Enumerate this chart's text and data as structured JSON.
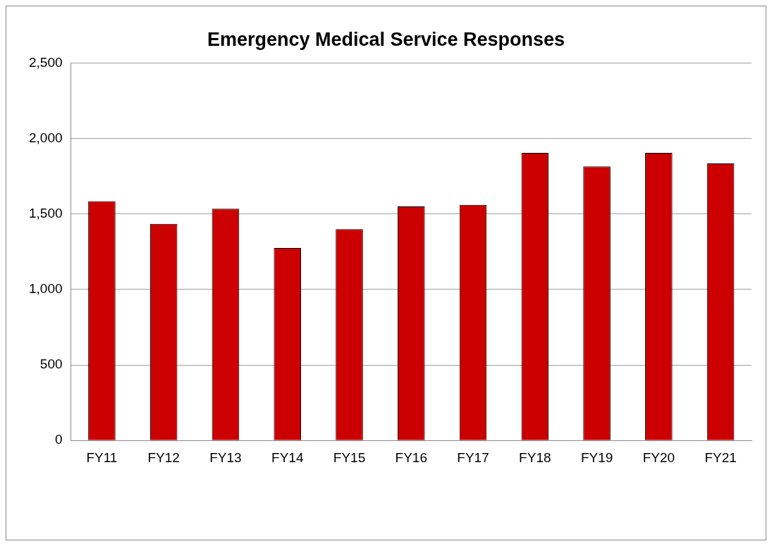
{
  "chart_data": {
    "type": "bar",
    "title": "Emergency Medical Service Responses",
    "categories": [
      "FY11",
      "FY12",
      "FY13",
      "FY14",
      "FY15",
      "FY16",
      "FY17",
      "FY18",
      "FY19",
      "FY20",
      "FY21"
    ],
    "values": [
      1585,
      1435,
      1535,
      1275,
      1400,
      1550,
      1560,
      1905,
      1815,
      1905,
      1835
    ],
    "color": "#cc0000",
    "ylim": [
      0,
      2500
    ],
    "yticks": [
      0,
      500,
      {
        "value": 1000,
        "label": "1,000"
      },
      {
        "value": 1500,
        "label": "1,500"
      },
      {
        "value": 2000,
        "label": "2,000"
      },
      {
        "value": 2500,
        "label": "2,500"
      }
    ],
    "grid": "y",
    "legend": false
  }
}
